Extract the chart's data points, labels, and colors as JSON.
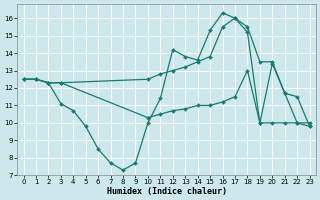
{
  "title": "",
  "xlabel": "Humidex (Indice chaleur)",
  "xlim": [
    -0.5,
    23.5
  ],
  "ylim": [
    7,
    16.8
  ],
  "yticks": [
    7,
    8,
    9,
    10,
    11,
    12,
    13,
    14,
    15,
    16
  ],
  "xticks": [
    0,
    1,
    2,
    3,
    4,
    5,
    6,
    7,
    8,
    9,
    10,
    11,
    12,
    13,
    14,
    15,
    16,
    17,
    18,
    19,
    20,
    21,
    22,
    23
  ],
  "bg_color": "#cce8ec",
  "line_color": "#1a7a6e",
  "grid_color": "#ffffff",
  "lines": [
    {
      "x": [
        0,
        1,
        2,
        3,
        4,
        5,
        6,
        7,
        8,
        9,
        10,
        11,
        12,
        13,
        14,
        15,
        16,
        17,
        18,
        19,
        20,
        21,
        22,
        23
      ],
      "y": [
        12.5,
        12.5,
        12.3,
        11.1,
        10.7,
        9.8,
        8.5,
        7.7,
        7.3,
        7.7,
        10.0,
        11.4,
        14.2,
        13.8,
        13.6,
        15.3,
        16.3,
        16.0,
        15.2,
        10.0,
        13.4,
        11.7,
        10.0,
        9.8
      ]
    },
    {
      "x": [
        0,
        1,
        2,
        3,
        10,
        11,
        12,
        13,
        14,
        15,
        16,
        17,
        18,
        19,
        20,
        21,
        22,
        23
      ],
      "y": [
        12.5,
        12.5,
        12.3,
        12.3,
        10.3,
        10.5,
        10.7,
        10.8,
        11.0,
        11.0,
        11.2,
        11.5,
        13.0,
        10.0,
        10.0,
        10.0,
        10.0,
        10.0
      ]
    },
    {
      "x": [
        0,
        1,
        2,
        3,
        10,
        11,
        12,
        13,
        14,
        15,
        16,
        17,
        18,
        19,
        20,
        21,
        22,
        23
      ],
      "y": [
        12.5,
        12.5,
        12.3,
        12.3,
        12.5,
        12.8,
        13.0,
        13.2,
        13.5,
        13.8,
        15.5,
        16.0,
        15.5,
        13.5,
        13.5,
        11.7,
        11.5,
        9.8
      ]
    }
  ]
}
